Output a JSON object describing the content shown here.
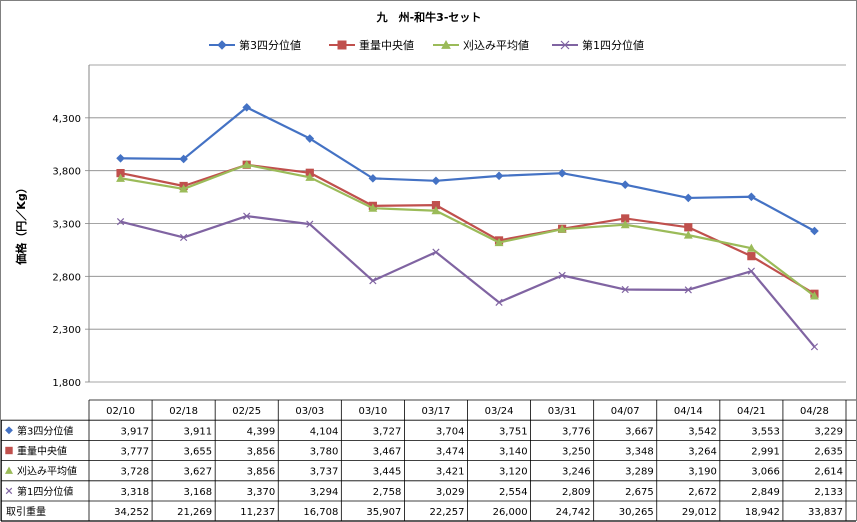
{
  "chart_data": {
    "type": "line",
    "title": "九　州-和牛3-セット",
    "ylabel": "価格（円／Kg）",
    "ylim": [
      1800,
      4800
    ],
    "yticks": [
      1800,
      2300,
      2800,
      3300,
      3800,
      4300
    ],
    "ytick_labels": [
      "1,800",
      "2,300",
      "2,800",
      "3,300",
      "3,800",
      "4,300"
    ],
    "categories": [
      "02/10",
      "02/18",
      "02/25",
      "03/03",
      "03/10",
      "03/17",
      "03/24",
      "03/31",
      "04/07",
      "04/14",
      "04/21",
      "04/28"
    ],
    "legend_position": "top",
    "grid": "horizontal",
    "series": [
      {
        "name": "第3四分位値",
        "marker": "diamond",
        "color": "#4472c4",
        "values": [
          3917,
          3911,
          4399,
          4104,
          3727,
          3704,
          3751,
          3776,
          3667,
          3542,
          3553,
          3229
        ],
        "labels": [
          "3,917",
          "3,911",
          "4,399",
          "4,104",
          "3,727",
          "3,704",
          "3,751",
          "3,776",
          "3,667",
          "3,542",
          "3,553",
          "3,229"
        ]
      },
      {
        "name": "重量中央値",
        "marker": "square",
        "color": "#c0504d",
        "values": [
          3777,
          3655,
          3856,
          3780,
          3467,
          3474,
          3140,
          3250,
          3348,
          3264,
          2991,
          2635
        ],
        "labels": [
          "3,777",
          "3,655",
          "3,856",
          "3,780",
          "3,467",
          "3,474",
          "3,140",
          "3,250",
          "3,348",
          "3,264",
          "2,991",
          "2,635"
        ]
      },
      {
        "name": "刈込み平均値",
        "marker": "triangle",
        "color": "#9bbb59",
        "values": [
          3728,
          3627,
          3856,
          3737,
          3445,
          3421,
          3120,
          3246,
          3289,
          3190,
          3066,
          2614
        ],
        "labels": [
          "3,728",
          "3,627",
          "3,856",
          "3,737",
          "3,445",
          "3,421",
          "3,120",
          "3,246",
          "3,289",
          "3,190",
          "3,066",
          "2,614"
        ]
      },
      {
        "name": "第1四分位値",
        "marker": "x",
        "color": "#8064a2",
        "values": [
          3318,
          3168,
          3370,
          3294,
          2758,
          3029,
          2554,
          2809,
          2675,
          2672,
          2849,
          2133
        ],
        "labels": [
          "3,318",
          "3,168",
          "3,370",
          "3,294",
          "2,758",
          "3,029",
          "2,554",
          "2,809",
          "2,675",
          "2,672",
          "2,849",
          "2,133"
        ]
      }
    ],
    "table_extra_rows": [
      {
        "name": "取引重量",
        "labels": [
          "34,252",
          "21,269",
          "11,237",
          "16,708",
          "35,907",
          "22,257",
          "26,000",
          "24,742",
          "30,265",
          "29,012",
          "18,942",
          "33,837"
        ]
      }
    ]
  }
}
